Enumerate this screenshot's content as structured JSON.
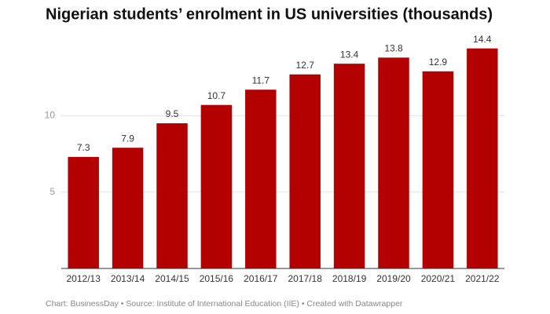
{
  "chart_data": {
    "type": "bar",
    "title": "Nigerian students’ enrolment in US universities (thousands)",
    "categories": [
      "2012/13",
      "2013/14",
      "2014/15",
      "2015/16",
      "2016/17",
      "2017/18",
      "2018/19",
      "2019/20",
      "2020/21",
      "2021/22"
    ],
    "values": [
      7.3,
      7.9,
      9.5,
      10.7,
      11.7,
      12.7,
      13.4,
      13.8,
      12.9,
      14.4
    ],
    "color": "#b30000",
    "ylim": [
      0,
      15
    ],
    "yticks": [
      5,
      10
    ],
    "grid": true,
    "footer": "Chart: BusinessDay • Source: Institute of International Education (IIE) • Created with Datawrapper"
  }
}
